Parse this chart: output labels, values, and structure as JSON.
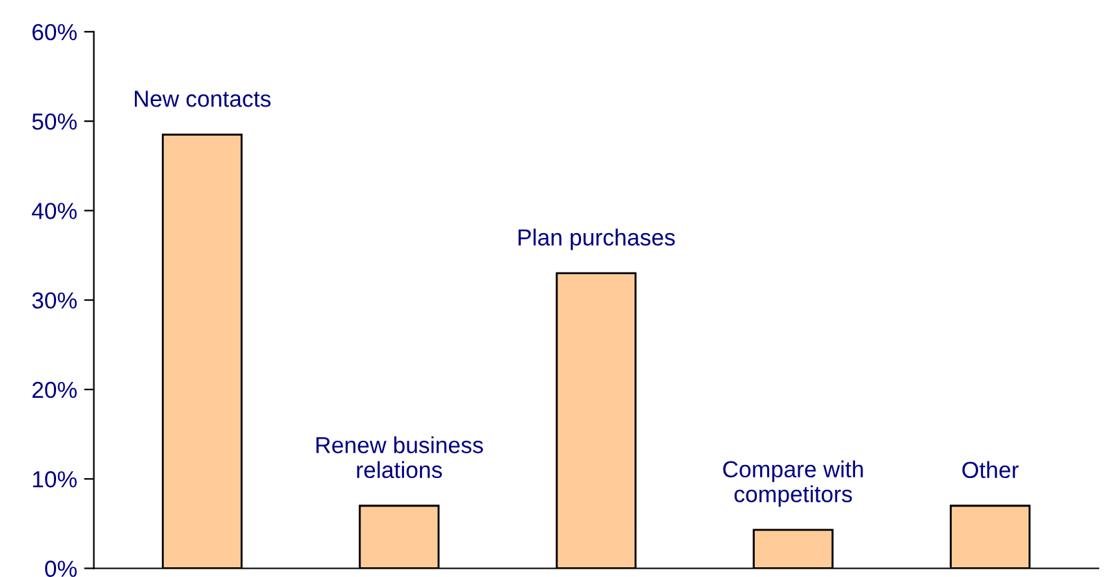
{
  "chart_data": {
    "type": "bar",
    "categories": [
      "New contacts",
      "Renew business\nrelations",
      "Plan purchases",
      "Compare with\ncompetitors",
      "Other"
    ],
    "values": [
      48.5,
      7,
      33,
      4.3,
      7
    ],
    "color": "#ffcc99",
    "ylim": [
      0,
      60
    ],
    "yticks": [
      {
        "value": 0,
        "label": "0%"
      },
      {
        "value": 10,
        "label": "10%"
      },
      {
        "value": 20,
        "label": "20%"
      },
      {
        "value": 30,
        "label": "30%"
      },
      {
        "value": 40,
        "label": "40%"
      },
      {
        "value": 50,
        "label": "50%"
      },
      {
        "value": 60,
        "label": "60%"
      }
    ],
    "grid": false,
    "legend": false
  }
}
